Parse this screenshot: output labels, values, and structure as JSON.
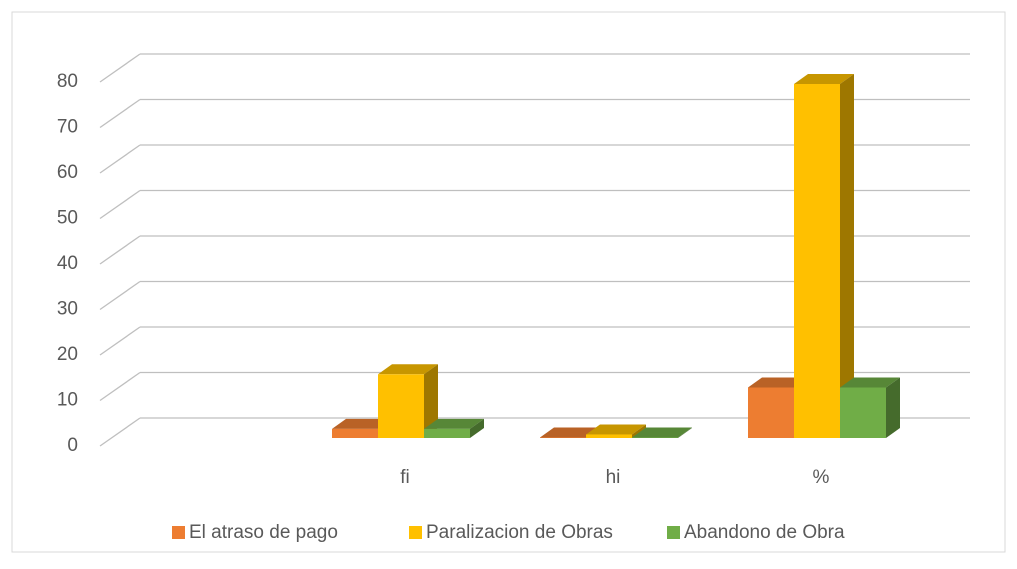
{
  "chart_data": {
    "type": "bar3d",
    "categories": [
      null,
      "fi",
      "hi",
      "%"
    ],
    "series": [
      {
        "name": "El atraso de pago",
        "color": "#ed7d31",
        "values": [
          null,
          2,
          0.11,
          11.1
        ]
      },
      {
        "name": "Paralizacion de Obras",
        "color": "#ffc000",
        "values": [
          null,
          14,
          0.78,
          77.8
        ]
      },
      {
        "name": "Abandono de Obra",
        "color": "#70ad47",
        "values": [
          null,
          2,
          0.11,
          11.1
        ]
      }
    ],
    "ylim": [
      0,
      80
    ],
    "yticks": [
      0,
      10,
      20,
      30,
      40,
      50,
      60,
      70,
      80
    ],
    "grid": true,
    "legend": "bottom"
  }
}
